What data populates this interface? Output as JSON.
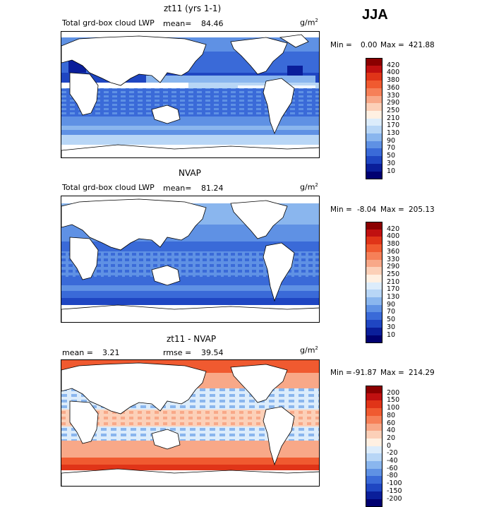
{
  "season": "JJA",
  "panels": [
    {
      "title": "zt11 (yrs 1-1)",
      "left_label": "Total grd-box cloud LWP",
      "mean_label": "mean=",
      "mean_value": "84.46",
      "rmse_label": "",
      "rmse_value": "",
      "units": "g/m",
      "units_sup": "2",
      "min_label": "Min =",
      "min_value": "0.00",
      "max_label": "Max =",
      "max_value": "421.88",
      "colorbar": {
        "labels": [
          "420",
          "400",
          "380",
          "360",
          "330",
          "290",
          "250",
          "210",
          "170",
          "130",
          "90",
          "70",
          "50",
          "30",
          "10"
        ],
        "colors": [
          "#8b0000",
          "#c01010",
          "#e03418",
          "#f05a30",
          "#f68058",
          "#f8a888",
          "#fcd0b8",
          "#fff0e2",
          "#dcecfb",
          "#b8d6f6",
          "#8ab6ee",
          "#5f91e4",
          "#3a6ad8",
          "#1f46c2",
          "#0a1e9a",
          "#000070"
        ]
      }
    },
    {
      "title": "NVAP",
      "left_label": "Total grd-box cloud LWP",
      "mean_label": "mean=",
      "mean_value": "81.24",
      "rmse_label": "",
      "rmse_value": "",
      "units": "g/m",
      "units_sup": "2",
      "min_label": "Min =",
      "min_value": "-8.04",
      "max_label": "Max =",
      "max_value": "205.13",
      "colorbar": {
        "labels": [
          "420",
          "400",
          "380",
          "360",
          "330",
          "290",
          "250",
          "210",
          "170",
          "130",
          "90",
          "70",
          "50",
          "30",
          "10"
        ],
        "colors": [
          "#8b0000",
          "#c01010",
          "#e03418",
          "#f05a30",
          "#f68058",
          "#f8a888",
          "#fcd0b8",
          "#fff0e2",
          "#dcecfb",
          "#b8d6f6",
          "#8ab6ee",
          "#5f91e4",
          "#3a6ad8",
          "#1f46c2",
          "#0a1e9a",
          "#000070"
        ]
      }
    },
    {
      "title": "zt11 - NVAP",
      "left_label": "",
      "mean_label": "mean =",
      "mean_value": "3.21",
      "rmse_label": "rmse =",
      "rmse_value": "39.54",
      "units": "g/m",
      "units_sup": "2",
      "min_label": "Min =",
      "min_value": "-91.87",
      "max_label": "Max =",
      "max_value": "214.29",
      "colorbar": {
        "labels": [
          "200",
          "150",
          "100",
          "80",
          "60",
          "40",
          "20",
          "0",
          "-20",
          "-40",
          "-60",
          "-80",
          "-100",
          "-150",
          "-200"
        ],
        "colors": [
          "#8b0000",
          "#c01010",
          "#e03418",
          "#f05a30",
          "#f68058",
          "#f8a888",
          "#fcd0b8",
          "#fff0e2",
          "#dcecfb",
          "#b8d6f6",
          "#8ab6ee",
          "#5f91e4",
          "#3a6ad8",
          "#1f46c2",
          "#0a1e9a",
          "#000070"
        ]
      }
    }
  ]
}
